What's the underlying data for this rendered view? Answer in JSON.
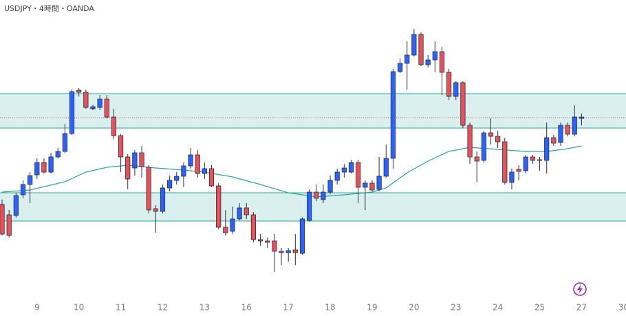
{
  "chart_data": {
    "type": "candlestick",
    "title": "USDJPY・4時間・OANDA",
    "up_color": "#2962ff",
    "down_color": "#e8515a",
    "wick_color": "#2a2e39",
    "open": [
      163,
      148,
      147,
      177,
      192,
      206,
      224,
      210,
      232,
      240,
      266,
      329,
      326,
      302,
      304,
      316,
      290,
      263,
      232,
      216,
      238,
      217,
      157,
      153,
      187,
      198,
      204,
      219,
      235,
      208,
      215,
      190,
      130,
      124,
      142,
      158,
      148,
      112,
      110,
      110,
      95,
      93,
      97,
      92,
      140,
      181,
      170,
      181,
      198,
      210,
      210,
      224,
      188,
      194,
      185,
      204,
      230,
      356,
      368,
      380,
      410,
      366,
      373,
      385,
      355,
      320,
      340,
      278,
      232,
      227,
      267,
      262,
      254,
      195,
      214,
      212,
      232,
      228,
      227,
      260,
      253,
      278,
      265,
      288
    ],
    "high": [
      170,
      155,
      180,
      198,
      210,
      230,
      230,
      238,
      245,
      280,
      330,
      332,
      330,
      308,
      322,
      322,
      302,
      265,
      236,
      242,
      248,
      220,
      162,
      192,
      205,
      210,
      224,
      245,
      242,
      224,
      220,
      194,
      155,
      160,
      165,
      165,
      152,
      120,
      115,
      120,
      100,
      100,
      120,
      144,
      185,
      192,
      192,
      205,
      215,
      222,
      228,
      228,
      198,
      198,
      232,
      250,
      360,
      375,
      400,
      418,
      413,
      380,
      400,
      392,
      360,
      342,
      342,
      282,
      240,
      270,
      288,
      270,
      260,
      215,
      220,
      235,
      235,
      232,
      282,
      264,
      282,
      282,
      307,
      295
    ],
    "low": [
      118,
      115,
      144,
      172,
      165,
      200,
      208,
      208,
      230,
      238,
      264,
      320,
      302,
      300,
      300,
      288,
      258,
      210,
      185,
      205,
      202,
      150,
      122,
      150,
      182,
      192,
      188,
      215,
      202,
      200,
      188,
      127,
      118,
      120,
      140,
      142,
      108,
      103,
      100,
      65,
      75,
      80,
      75,
      90,
      138,
      168,
      165,
      178,
      192,
      202,
      208,
      165,
      155,
      182,
      182,
      202,
      215,
      354,
      330,
      378,
      364,
      362,
      355,
      322,
      315,
      315,
      274,
      222,
      195,
      224,
      250,
      245,
      192,
      185,
      198,
      208,
      222,
      212,
      208,
      248,
      248,
      262,
      262,
      278
    ],
    "close": [
      120,
      118,
      176,
      192,
      205,
      224,
      210,
      232,
      240,
      266,
      327,
      326,
      304,
      305,
      316,
      290,
      263,
      232,
      200,
      238,
      218,
      155,
      153,
      187,
      198,
      204,
      219,
      235,
      208,
      215,
      190,
      130,
      122,
      142,
      158,
      148,
      112,
      110,
      108,
      95,
      93,
      96,
      93,
      142,
      181,
      172,
      181,
      198,
      210,
      216,
      224,
      188,
      194,
      184,
      204,
      230,
      356,
      368,
      380,
      410,
      366,
      373,
      385,
      355,
      320,
      340,
      278,
      232,
      226,
      267,
      262,
      254,
      195,
      210,
      211,
      232,
      227,
      227,
      260,
      252,
      278,
      265,
      290,
      290
    ],
    "ma": {
      "color": "#26a69a",
      "x": [
        0,
        4,
        9,
        12,
        15,
        18,
        22,
        26,
        29,
        33,
        37,
        41,
        45,
        49,
        53,
        55,
        58,
        61,
        64,
        67,
        71,
        75,
        78,
        81,
        83
      ],
      "values": [
        181,
        184,
        196,
        210,
        217,
        220,
        216,
        213,
        210,
        203,
        192,
        180,
        174,
        177,
        181,
        187,
        209,
        226,
        240,
        246,
        243,
        240,
        240,
        244,
        248
      ]
    },
    "zones": [
      {
        "from": 324,
        "to": 274
      },
      {
        "from": 180,
        "to": 139
      }
    ],
    "zone_color": "#26a69a",
    "price_line": 289,
    "price_line_color": "#e8515a",
    "xlim": [
      -0.3,
      89.36
    ],
    "ylim": [
      23,
      460
    ],
    "xticks": [
      {
        "value": 5,
        "label": "9"
      },
      {
        "value": 11,
        "label": "10"
      },
      {
        "value": 17,
        "label": "11"
      },
      {
        "value": 23,
        "label": "12"
      },
      {
        "value": 29,
        "label": "13"
      },
      {
        "value": 35,
        "label": "16"
      },
      {
        "value": 41,
        "label": "17"
      },
      {
        "value": 47,
        "label": "18"
      },
      {
        "value": 53,
        "label": "19"
      },
      {
        "value": 59,
        "label": "20"
      },
      {
        "value": 65,
        "label": "23"
      },
      {
        "value": 71,
        "label": "24"
      },
      {
        "value": 77,
        "label": "25"
      },
      {
        "value": 83,
        "label": "27"
      },
      {
        "value": 89,
        "label": "30"
      }
    ]
  }
}
